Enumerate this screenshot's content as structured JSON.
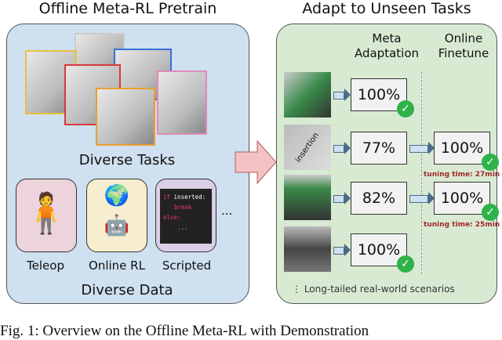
{
  "left": {
    "title": "Offline Meta-RL Pretrain",
    "tasks_label": "Diverse Tasks",
    "data_label": "Diverse Data",
    "sources": [
      {
        "label": "Teleop",
        "color": "#ecd3dc"
      },
      {
        "label": "Online RL",
        "color": "#f6eecf"
      },
      {
        "label": "Scripted",
        "color": "#d9cfe6"
      }
    ],
    "more": "...",
    "code": [
      "if inserted:",
      "break",
      "else:",
      "..."
    ]
  },
  "right": {
    "title": "Adapt to Unseen Tasks",
    "col1": "Meta Adaptation",
    "col2": "Online Finetune",
    "rows": [
      {
        "meta": "100%"
      },
      {
        "meta": "77%",
        "finetune": "100%",
        "tuning": "tuning time: 27min",
        "image_text": "insertion"
      },
      {
        "meta": "82%",
        "finetune": "100%",
        "tuning": "tuning time: 25min"
      },
      {
        "meta": "100%"
      }
    ],
    "footer": "Long-tailed real-world scenarios"
  },
  "caption": "Fig. 1: Overview on the Offline Meta-RL with Demonstration",
  "colors": {
    "left_panel": "#cfe0f0",
    "right_panel": "#d9ead3",
    "arrow": "#f4c2c2",
    "check": "#2fb24a",
    "tuning": "#a0282a"
  }
}
